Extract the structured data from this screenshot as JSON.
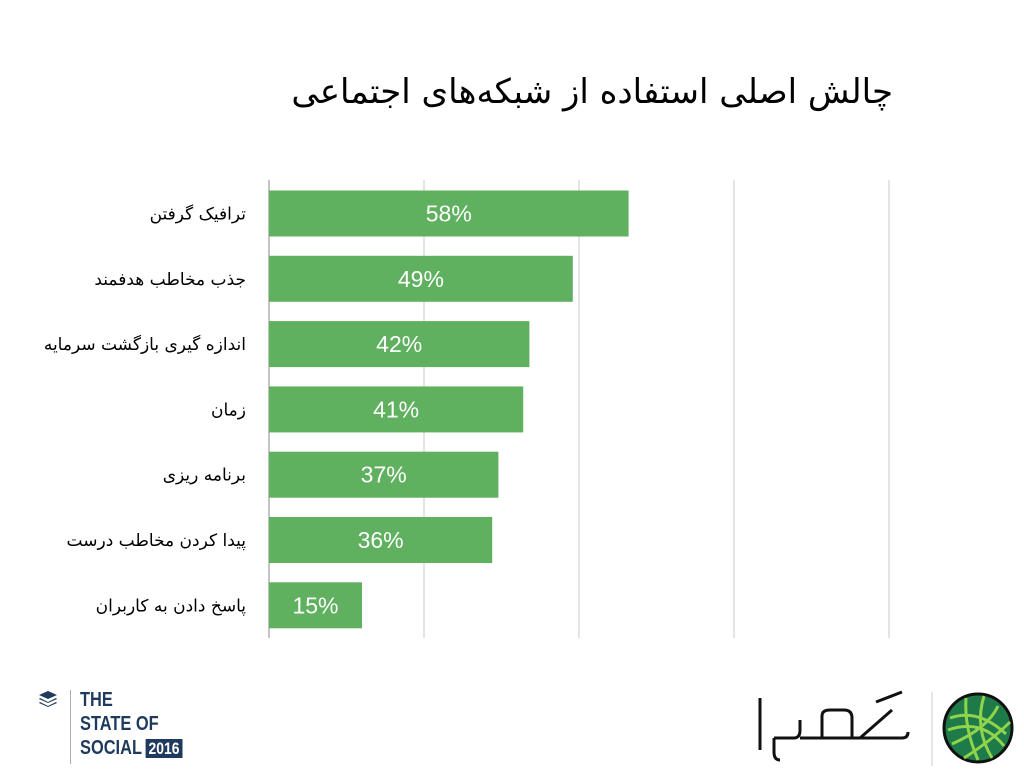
{
  "title": "چالش اصلی استفاده از شبکه‌های اجتماعی",
  "chart_data": {
    "type": "bar",
    "orientation": "horizontal",
    "title": "چالش اصلی استفاده از شبکه‌های اجتماعی",
    "categories": [
      "ترافیک گرفتن",
      "جذب مخاطب هدفمند",
      "اندازه گیری بازگشت سرمایه",
      "زمان",
      "برنامه ریزی",
      "پیدا کردن مخاطب درست",
      "پاسخ دادن به کاربران"
    ],
    "values": [
      58,
      49,
      42,
      41,
      37,
      36,
      15
    ],
    "labels": [
      "58%",
      "49%",
      "42%",
      "41%",
      "37%",
      "36%",
      "15%"
    ],
    "xlim": [
      0,
      100
    ],
    "x_gridlines": [
      0,
      25,
      50,
      75,
      100
    ],
    "grid": true,
    "bar_color": "#5fb05f",
    "grid_color": "#c8c8c8"
  },
  "footer": {
    "left_logo": {
      "lines": [
        "THE",
        "STATE OF",
        "SOCIAL"
      ],
      "year": "2016",
      "color": "#1e3a5c"
    },
    "right_logo": {
      "text": "کاموا",
      "colors": [
        "#1a9a6a",
        "#7ec843",
        "#2d6e3a"
      ]
    }
  }
}
